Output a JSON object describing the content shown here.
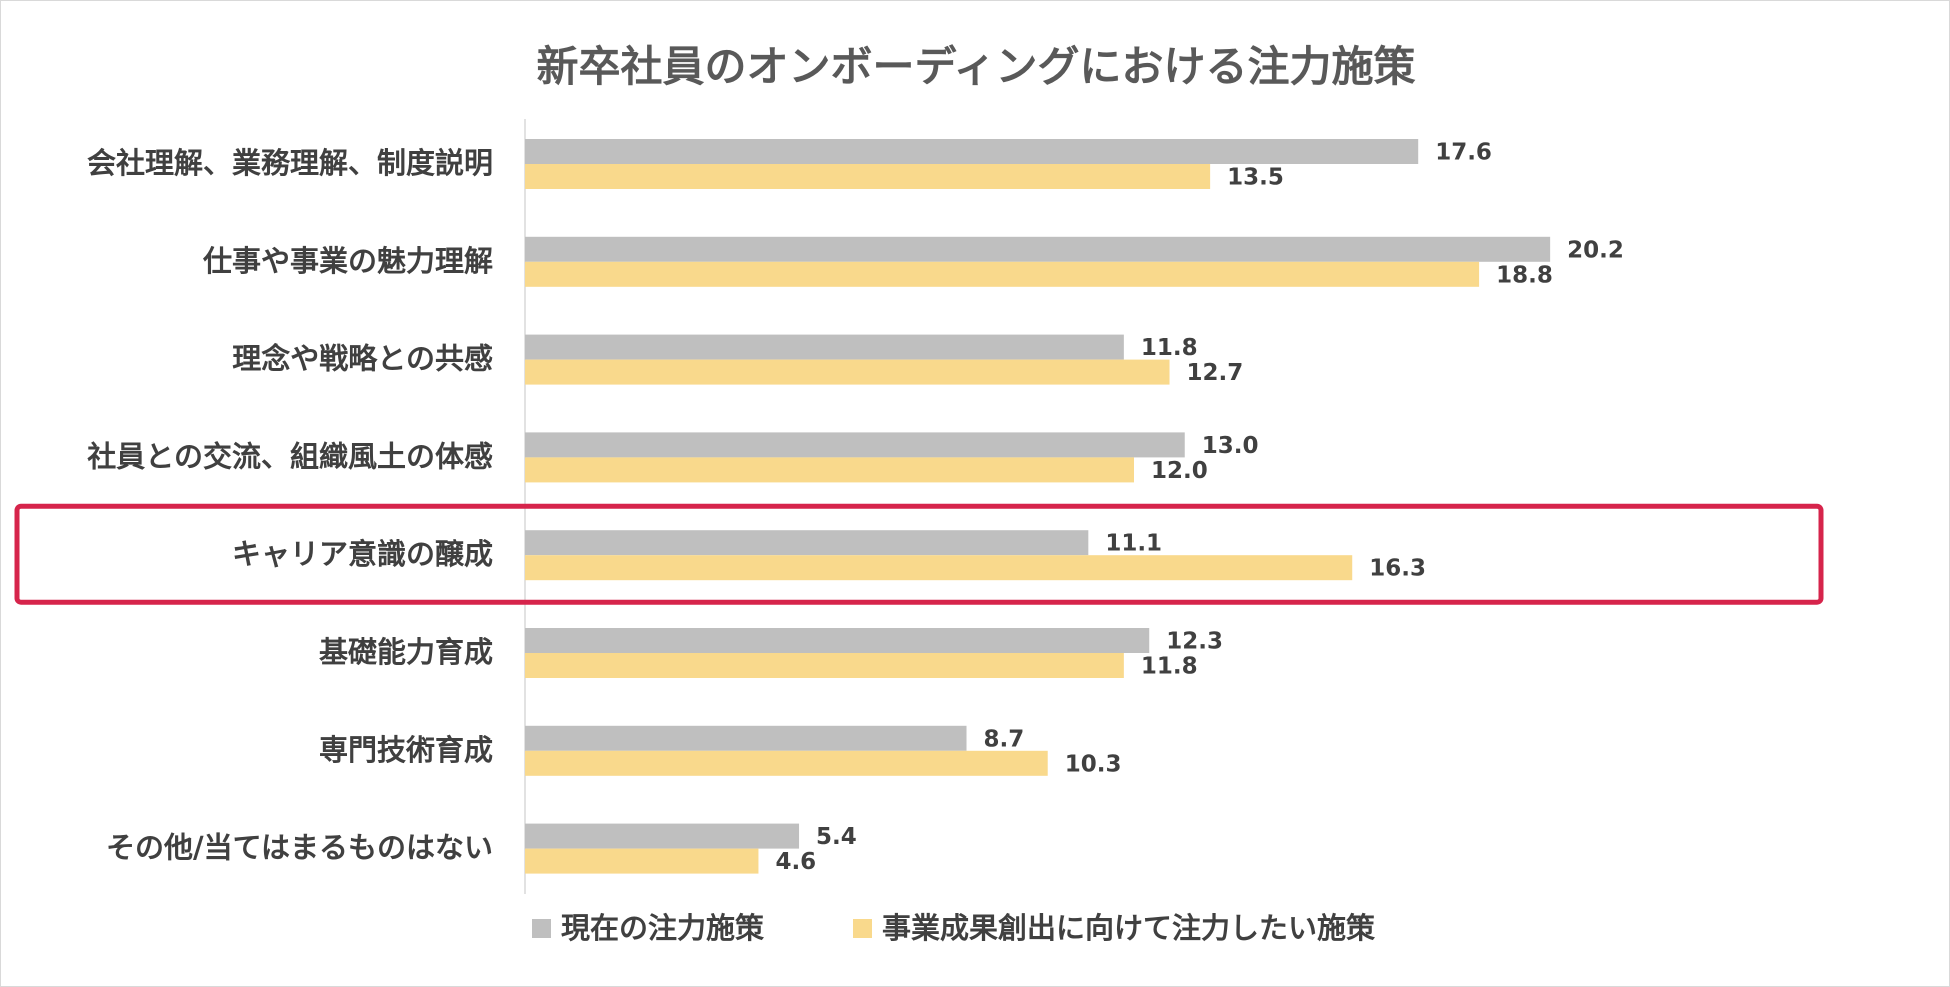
{
  "chart_data": {
    "type": "bar",
    "orientation": "horizontal",
    "title": "新卒社員のオンボーディングにおける注力施策",
    "xlabel": "",
    "ylabel": "",
    "xlim": [
      0,
      22
    ],
    "grid": false,
    "legend_position": "bottom",
    "highlighted_category": "キャリア意識の醸成",
    "highlight_color": "#d6244b",
    "categories": [
      "会社理解、業務理解、制度説明",
      "仕事や事業の魅力理解",
      "理念や戦略との共感",
      "社員との交流、組織風土の体感",
      "キャリア意識の醸成",
      "基礎能力育成",
      "専門技術育成",
      "その他/当てはまるものはない"
    ],
    "series": [
      {
        "name": "現在の注力施策",
        "color": "#bfbfbf",
        "values": [
          17.6,
          20.2,
          11.8,
          13.0,
          11.1,
          12.3,
          8.7,
          5.4
        ],
        "labels": [
          "17.6",
          "20.2",
          "11.8",
          "13.0",
          "11.1",
          "12.3",
          "8.7",
          "5.4"
        ]
      },
      {
        "name": "事業成果創出に向けて注力したい施策",
        "color": "#f9d98c",
        "values": [
          13.5,
          18.8,
          12.7,
          12.0,
          16.3,
          11.8,
          10.3,
          4.6
        ],
        "labels": [
          "13.5",
          "18.8",
          "12.7",
          "12.0",
          "16.3",
          "11.8",
          "10.3",
          "4.6"
        ]
      }
    ]
  }
}
